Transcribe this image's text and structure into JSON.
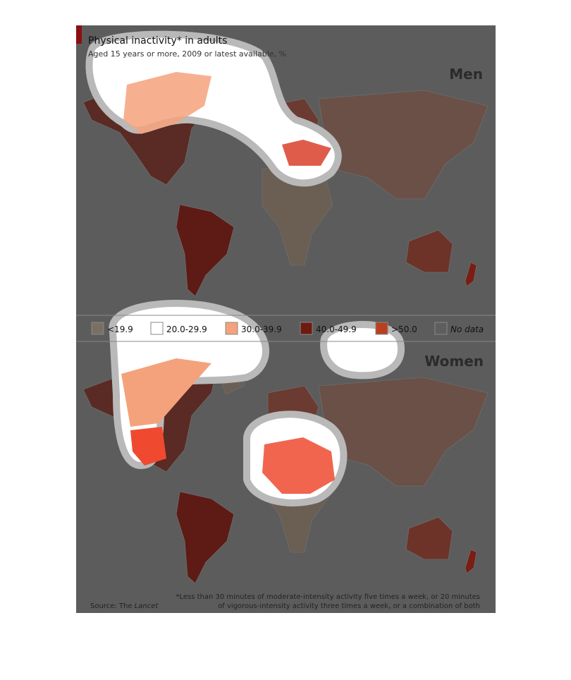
{
  "header": {
    "title": "Physical inactivity* in adults",
    "subtitle": "Aged 15 years or more, 2009 or latest available, %"
  },
  "maps": [
    {
      "label": "Men"
    },
    {
      "label": "Women"
    }
  ],
  "legend": [
    {
      "label": "<19.9",
      "color": "#7b6f63"
    },
    {
      "label": "20.0-29.9",
      "color": "#ffffff"
    },
    {
      "label": "30.0-39.9",
      "color": "#f4a27c"
    },
    {
      "label": "40.0-49.9",
      "color": "#6e1a0f"
    },
    {
      "label": ">50.0",
      "color": "#b8401f"
    },
    {
      "label": "No data",
      "color": "#5e5e5e"
    }
  ],
  "footer": {
    "source_prefix": "Source: The",
    "source_publication": "Lancet",
    "footnote": [
      "*Less than 30 minutes of moderate-intensity activity five times a week, or 20 minutes",
      "of vigorous-intensity activity three times a week, or a combination of both"
    ]
  }
}
